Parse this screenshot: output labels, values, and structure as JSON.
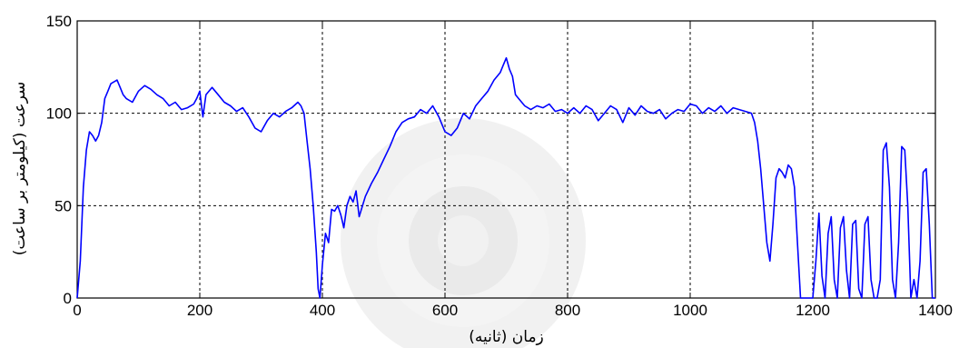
{
  "chart_data": {
    "type": "line",
    "xlabel": "زمان (ثانیه)",
    "ylabel": "سرعت (کیلومتر بر ساعت)",
    "xlim": [
      0,
      1400
    ],
    "ylim": [
      0,
      150
    ],
    "x_ticks": [
      "0",
      "200",
      "400",
      "600",
      "800",
      "1000",
      "1200",
      "1400"
    ],
    "y_ticks": [
      "0",
      "50",
      "100",
      "150"
    ],
    "grid": true,
    "series_color": "#0000ff",
    "series": [
      {
        "x": [
          0,
          5,
          10,
          15,
          20,
          25,
          30,
          35,
          40,
          45,
          50,
          55,
          60,
          65,
          70,
          75,
          80,
          90,
          100,
          110,
          120,
          130,
          140,
          150,
          160,
          170,
          180,
          190,
          195,
          200,
          205,
          210,
          220,
          230,
          240,
          250,
          260,
          270,
          280,
          290,
          300,
          310,
          320,
          330,
          340,
          350,
          360,
          365,
          370,
          375,
          380,
          385,
          390,
          393,
          396,
          400,
          405,
          410,
          415,
          420,
          425,
          430,
          435,
          440,
          445,
          450,
          455,
          460,
          470,
          480,
          490,
          500,
          510,
          520,
          530,
          540,
          550,
          560,
          570,
          580,
          590,
          600,
          610,
          620,
          630,
          640,
          650,
          660,
          670,
          680,
          690,
          695,
          700,
          705,
          710,
          715,
          720,
          730,
          740,
          750,
          760,
          770,
          780,
          790,
          800,
          810,
          820,
          830,
          840,
          850,
          860,
          870,
          880,
          890,
          900,
          910,
          920,
          930,
          940,
          950,
          960,
          970,
          980,
          990,
          1000,
          1010,
          1020,
          1030,
          1040,
          1050,
          1060,
          1070,
          1080,
          1090,
          1100,
          1105,
          1110,
          1115,
          1120,
          1125,
          1130,
          1135,
          1140,
          1145,
          1150,
          1155,
          1160,
          1165,
          1170,
          1175,
          1180,
          1185,
          1190,
          1195,
          1200,
          1205,
          1210,
          1215,
          1220,
          1225,
          1230,
          1235,
          1240,
          1245,
          1250,
          1255,
          1260,
          1265,
          1270,
          1275,
          1280,
          1285,
          1290,
          1295,
          1300,
          1305,
          1310,
          1315,
          1320,
          1325,
          1330,
          1335,
          1340,
          1345,
          1350,
          1355,
          1360,
          1365,
          1370,
          1375,
          1380,
          1385,
          1390,
          1395,
          1400
        ],
        "values": [
          0,
          20,
          60,
          80,
          90,
          88,
          85,
          88,
          95,
          108,
          112,
          116,
          117,
          118,
          114,
          110,
          108,
          106,
          112,
          115,
          113,
          110,
          108,
          104,
          106,
          102,
          103,
          105,
          108,
          112,
          98,
          110,
          114,
          110,
          106,
          104,
          101,
          103,
          98,
          92,
          90,
          96,
          100,
          98,
          101,
          103,
          106,
          104,
          100,
          85,
          70,
          50,
          25,
          5,
          0,
          18,
          35,
          30,
          48,
          47,
          50,
          45,
          38,
          50,
          55,
          52,
          58,
          44,
          55,
          62,
          68,
          75,
          82,
          90,
          95,
          97,
          98,
          102,
          100,
          104,
          98,
          90,
          88,
          92,
          100,
          97,
          104,
          108,
          112,
          118,
          122,
          126,
          130,
          124,
          120,
          110,
          108,
          104,
          102,
          104,
          103,
          105,
          101,
          102,
          100,
          103,
          100,
          104,
          102,
          96,
          100,
          104,
          102,
          95,
          103,
          99,
          104,
          101,
          100,
          102,
          97,
          100,
          102,
          101,
          105,
          104,
          100,
          103,
          101,
          104,
          100,
          103,
          102,
          101,
          100,
          95,
          85,
          70,
          50,
          30,
          20,
          40,
          65,
          70,
          68,
          65,
          72,
          70,
          60,
          30,
          0,
          0,
          0,
          0,
          0,
          20,
          46,
          12,
          0,
          35,
          44,
          10,
          0,
          38,
          44,
          15,
          0,
          40,
          42,
          5,
          0,
          40,
          44,
          10,
          0,
          0,
          10,
          80,
          84,
          60,
          10,
          0,
          30,
          82,
          80,
          50,
          0,
          10,
          0,
          20,
          68,
          70,
          40,
          0,
          0
        ]
      }
    ]
  }
}
